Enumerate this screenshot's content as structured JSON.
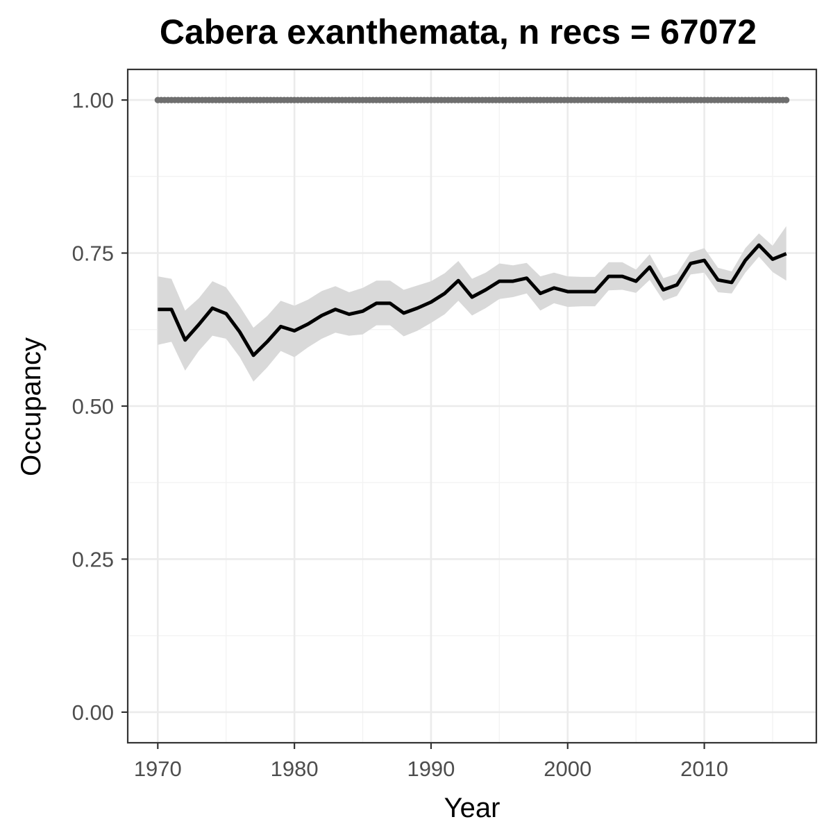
{
  "chart_data": {
    "type": "line",
    "title": "Cabera exanthemata, n recs = 67072",
    "xlabel": "Year",
    "ylabel": "Occupancy",
    "xlim": [
      1967.8,
      2018.2
    ],
    "ylim": [
      -0.05,
      1.05
    ],
    "x_ticks": [
      1970,
      1980,
      1990,
      2000,
      2010
    ],
    "x_tick_labels": [
      "1970",
      "1980",
      "1990",
      "2000",
      "2010"
    ],
    "y_ticks": [
      0,
      0.25,
      0.5,
      0.75,
      1.0
    ],
    "y_tick_labels": [
      "0.00",
      "0.25",
      "0.50",
      "0.75",
      "1.00"
    ],
    "grid": true,
    "legend": "none",
    "colors": {
      "line": "#000000",
      "ribbon": "#d9d9d9",
      "reference_points": "#6e6e6e",
      "grid_major": "#ebebeb",
      "grid_minor": "#f3f3f3",
      "panel_border": "#333333"
    },
    "x": [
      1970,
      1971,
      1972,
      1973,
      1974,
      1975,
      1976,
      1977,
      1978,
      1979,
      1980,
      1981,
      1982,
      1983,
      1984,
      1985,
      1986,
      1987,
      1988,
      1989,
      1990,
      1991,
      1992,
      1993,
      1994,
      1995,
      1996,
      1997,
      1998,
      1999,
      2000,
      2001,
      2002,
      2003,
      2004,
      2005,
      2006,
      2007,
      2008,
      2009,
      2010,
      2011,
      2012,
      2013,
      2014,
      2015,
      2016
    ],
    "series": [
      {
        "values": [
          0.658,
          0.658,
          0.608,
          0.633,
          0.66,
          0.651,
          0.621,
          0.583,
          0.605,
          0.63,
          0.623,
          0.634,
          0.648,
          0.658,
          0.65,
          0.655,
          0.668,
          0.668,
          0.652,
          0.66,
          0.67,
          0.684,
          0.705,
          0.678,
          0.69,
          0.704,
          0.704,
          0.709,
          0.684,
          0.693,
          0.687,
          0.687,
          0.687,
          0.712,
          0.712,
          0.704,
          0.727,
          0.69,
          0.698,
          0.733,
          0.738,
          0.706,
          0.702,
          0.738,
          0.763,
          0.74,
          0.749
        ],
        "lower": [
          0.6,
          0.605,
          0.558,
          0.59,
          0.615,
          0.61,
          0.58,
          0.54,
          0.563,
          0.59,
          0.58,
          0.596,
          0.61,
          0.62,
          0.615,
          0.617,
          0.632,
          0.632,
          0.614,
          0.623,
          0.636,
          0.65,
          0.672,
          0.648,
          0.66,
          0.675,
          0.678,
          0.684,
          0.656,
          0.668,
          0.662,
          0.663,
          0.663,
          0.689,
          0.69,
          0.685,
          0.706,
          0.672,
          0.68,
          0.715,
          0.718,
          0.686,
          0.684,
          0.718,
          0.744,
          0.719,
          0.705
        ],
        "upper": [
          0.712,
          0.708,
          0.656,
          0.676,
          0.704,
          0.694,
          0.663,
          0.628,
          0.647,
          0.672,
          0.664,
          0.674,
          0.688,
          0.696,
          0.686,
          0.693,
          0.705,
          0.705,
          0.69,
          0.697,
          0.704,
          0.717,
          0.737,
          0.708,
          0.718,
          0.733,
          0.73,
          0.734,
          0.712,
          0.718,
          0.712,
          0.711,
          0.711,
          0.735,
          0.735,
          0.723,
          0.748,
          0.709,
          0.716,
          0.751,
          0.758,
          0.726,
          0.72,
          0.758,
          0.782,
          0.762,
          0.794
        ]
      },
      {
        "values": [
          1,
          1,
          1,
          1,
          1,
          1,
          1,
          1,
          1,
          1,
          1,
          1,
          1,
          1,
          1,
          1,
          1,
          1,
          1,
          1,
          1,
          1,
          1,
          1,
          1,
          1,
          1,
          1,
          1,
          1,
          1,
          1,
          1,
          1,
          1,
          1,
          1,
          1,
          1,
          1,
          1,
          1,
          1,
          1,
          1,
          1,
          1
        ]
      }
    ]
  }
}
